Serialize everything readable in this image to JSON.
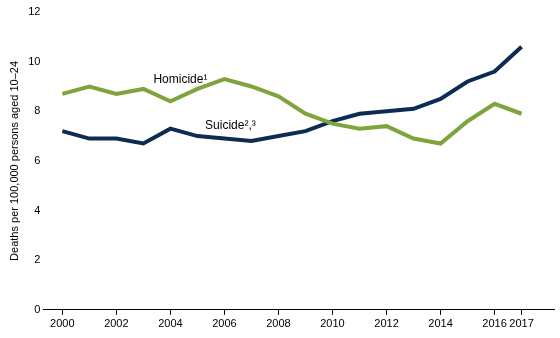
{
  "chart_data": {
    "type": "line",
    "y_label": "Deaths per 100,000 persons aged 10–24",
    "x": [
      2000,
      2001,
      2002,
      2003,
      2004,
      2005,
      2006,
      2007,
      2008,
      2009,
      2010,
      2011,
      2012,
      2013,
      2014,
      2015,
      2016,
      2017
    ],
    "series": [
      {
        "name": "Homicide¹",
        "color": "#7ea43d",
        "values": [
          8.7,
          9.0,
          8.7,
          8.9,
          8.4,
          8.9,
          9.3,
          9.0,
          8.6,
          7.9,
          7.5,
          7.3,
          7.4,
          6.9,
          6.7,
          7.6,
          8.3,
          7.9
        ]
      },
      {
        "name": "Suicide²,³",
        "color": "#0d2c54",
        "values": [
          7.2,
          6.9,
          6.9,
          6.7,
          7.3,
          7.0,
          6.9,
          6.8,
          7.0,
          7.2,
          7.6,
          7.9,
          8.0,
          8.1,
          8.5,
          9.2,
          9.6,
          10.6
        ]
      }
    ],
    "xlim": [
      1999.3,
      2018.2
    ],
    "xticks": [
      2000,
      2002,
      2004,
      2006,
      2008,
      2010,
      2012,
      2014,
      2016,
      2017
    ],
    "ylim": [
      0,
      12
    ],
    "yticks": [
      0,
      2,
      4,
      6,
      8,
      10,
      12
    ],
    "grid": false
  }
}
